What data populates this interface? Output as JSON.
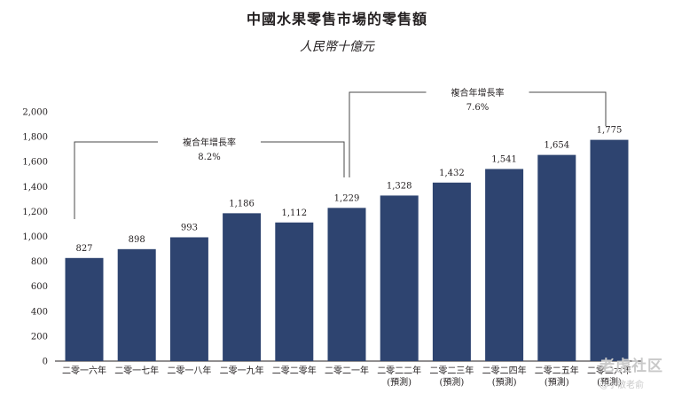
{
  "chart_data": {
    "type": "bar",
    "title": "中國水果零售市場的零售額",
    "subtitle": "人民幣十億元",
    "ylim": [
      0,
      2000
    ],
    "yticks": [
      "0",
      "200",
      "400",
      "600",
      "800",
      "1,000",
      "1,200",
      "1,400",
      "1,600",
      "1,800",
      "2,000"
    ],
    "categories": [
      {
        "name": "二零一六年",
        "sub": ""
      },
      {
        "name": "二零一七年",
        "sub": ""
      },
      {
        "name": "二零一八年",
        "sub": ""
      },
      {
        "name": "二零一九年",
        "sub": ""
      },
      {
        "name": "二零二零年",
        "sub": ""
      },
      {
        "name": "二零二一年",
        "sub": ""
      },
      {
        "name": "二零二二年",
        "sub": "(預測)"
      },
      {
        "name": "二零二三年",
        "sub": "(預測)"
      },
      {
        "name": "二零二四年",
        "sub": "(預測)"
      },
      {
        "name": "二零二五年",
        "sub": "(預測)"
      },
      {
        "name": "二零二六年",
        "sub": "(預測)"
      }
    ],
    "values": [
      827,
      898,
      993,
      1186,
      1112,
      1229,
      1328,
      1432,
      1541,
      1654,
      1775
    ],
    "value_labels": [
      "827",
      "898",
      "993",
      "1,186",
      "1,112",
      "1,229",
      "1,328",
      "1,432",
      "1,541",
      "1,654",
      "1,775"
    ],
    "bar_color": "#2e4470",
    "annotations": [
      {
        "label": "複合年增長率",
        "value": "8.2%",
        "from_index": 0,
        "to_index": 5
      },
      {
        "label": "複合年增長率",
        "value": "7.6%",
        "from_index": 5,
        "to_index": 10
      }
    ]
  },
  "watermark": {
    "main": "老虎社区",
    "sub": "@小散老俞"
  }
}
